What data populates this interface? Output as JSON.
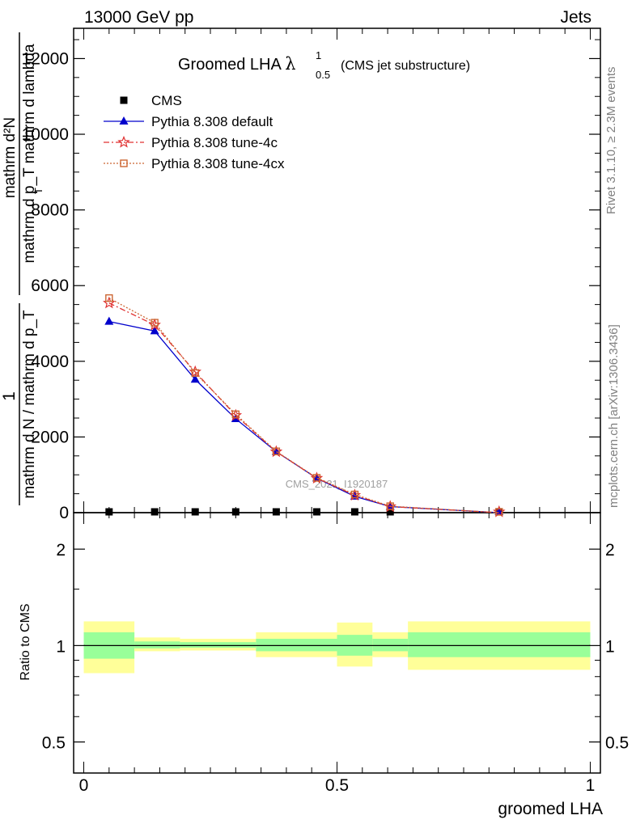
{
  "header": {
    "left_label": "13000 GeV pp",
    "right_label": "Jets"
  },
  "side_labels": {
    "rivet": "Rivet 3.1.10, ≥ 2.3M events",
    "mcplots": "mcplots.cern.ch [arXiv:1306.3436]"
  },
  "watermark": "CMS_2021_I1920187",
  "chart_data": [
    {
      "type": "line",
      "title": "Groomed LHA",
      "title_symbol": "λ",
      "title_superscript": "1",
      "title_subscript": "0.5",
      "subtitle": "(CMS jet substructure)",
      "ylabel_upper": "mathrm d²N",
      "ylabel_upper_2": "mathrm d p_T mathrm d lambda",
      "ylabel_lower": "mathrm d N / mathrm d p_T",
      "ylabel_numerator_one": "1",
      "ylabel_sub_T": "T",
      "ylim": [
        0,
        12800
      ],
      "yticks": [
        0,
        2000,
        4000,
        6000,
        8000,
        10000,
        12000
      ],
      "ytick_labels": [
        "0",
        "2000",
        "4000",
        "6000",
        "8000",
        "10000",
        "12000"
      ],
      "xlim": [
        -0.02,
        1.02
      ],
      "series": [
        {
          "name": "CMS",
          "color": "#000000",
          "marker": "square",
          "x": [
            0.05,
            0.14,
            0.22,
            0.3,
            0.38,
            0.46,
            0.535,
            0.605,
            0.82
          ],
          "values": [
            0,
            0,
            0,
            0,
            0,
            0,
            0,
            0,
            0
          ]
        },
        {
          "name": "Pythia 8.308 default",
          "color": "#0000cc",
          "marker": "triangle",
          "x": [
            0.05,
            0.14,
            0.22,
            0.3,
            0.38,
            0.46,
            0.535,
            0.605,
            0.82
          ],
          "values": [
            5050,
            4800,
            3520,
            2480,
            1610,
            910,
            430,
            160,
            0
          ]
        },
        {
          "name": "Pythia 8.308 tune-4c",
          "color": "#e03030",
          "marker": "star",
          "x": [
            0.05,
            0.14,
            0.22,
            0.3,
            0.38,
            0.46,
            0.535,
            0.605,
            0.82
          ],
          "values": [
            5540,
            4960,
            3720,
            2570,
            1610,
            910,
            460,
            160,
            0
          ]
        },
        {
          "name": "Pythia 8.308 tune-4cx",
          "color": "#cc6633",
          "marker": "open-square",
          "x": [
            0.05,
            0.14,
            0.22,
            0.3,
            0.38,
            0.46,
            0.535,
            0.605,
            0.82
          ],
          "values": [
            5670,
            5020,
            3690,
            2600,
            1620,
            920,
            480,
            170,
            0
          ]
        }
      ]
    },
    {
      "type": "area",
      "ylabel": "Ratio to CMS",
      "xlabel": "groomed LHA",
      "yscale": "log",
      "ylim": [
        0.4,
        2.6
      ],
      "yticks": [
        0.5,
        1,
        2
      ],
      "ytick_labels": [
        "0.5",
        "1",
        "2"
      ],
      "xlim": [
        -0.02,
        1.02
      ],
      "xticks": [
        0,
        0.5,
        1
      ],
      "xtick_labels": [
        "0",
        "0.5",
        "1"
      ],
      "reference_line": 1,
      "bins": [
        {
          "x0": 0.0,
          "x1": 0.1,
          "inner": [
            0.91,
            1.1
          ],
          "outer": [
            0.82,
            1.19
          ]
        },
        {
          "x0": 0.1,
          "x1": 0.19,
          "inner": [
            0.98,
            1.03
          ],
          "outer": [
            0.96,
            1.06
          ]
        },
        {
          "x0": 0.19,
          "x1": 0.34,
          "inner": [
            0.985,
            1.025
          ],
          "outer": [
            0.965,
            1.05
          ]
        },
        {
          "x0": 0.34,
          "x1": 0.5,
          "inner": [
            0.96,
            1.05
          ],
          "outer": [
            0.92,
            1.1
          ]
        },
        {
          "x0": 0.5,
          "x1": 0.57,
          "inner": [
            0.93,
            1.08
          ],
          "outer": [
            0.86,
            1.18
          ]
        },
        {
          "x0": 0.57,
          "x1": 0.64,
          "inner": [
            0.96,
            1.05
          ],
          "outer": [
            0.92,
            1.1
          ]
        },
        {
          "x0": 0.64,
          "x1": 1.0,
          "inner": [
            0.92,
            1.1
          ],
          "outer": [
            0.84,
            1.19
          ]
        }
      ],
      "colors": {
        "inner": "#99ff99",
        "outer": "#ffff99"
      }
    }
  ]
}
